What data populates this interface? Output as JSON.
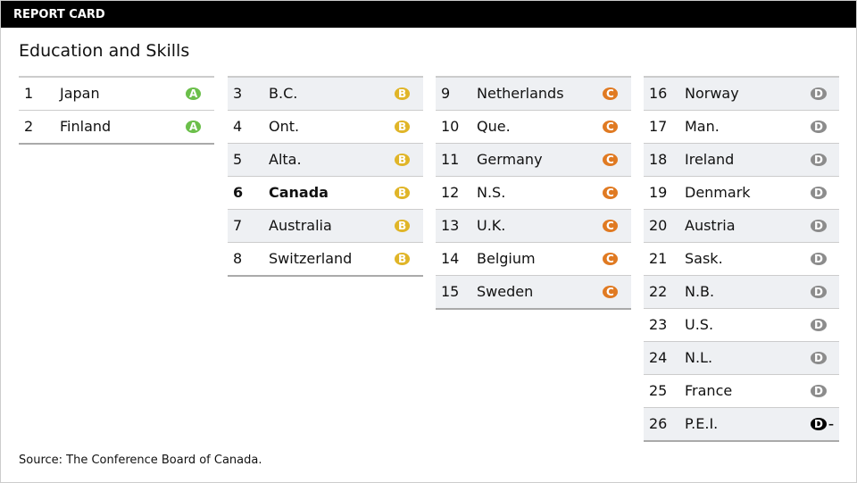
{
  "header": {
    "title": "REPORT CARD"
  },
  "subtitle": "Education and Skills",
  "columns": [
    [
      [
        "1",
        "Japan",
        "A"
      ],
      [
        "2",
        "Finland",
        "A"
      ]
    ],
    [
      [
        "3",
        "B.C.",
        "B"
      ],
      [
        "4",
        "Ont.",
        "B"
      ],
      [
        "5",
        "Alta.",
        "B"
      ],
      [
        "6",
        "Canada",
        "B"
      ],
      [
        "7",
        "Australia",
        "B"
      ],
      [
        "8",
        "Switzerland",
        "B"
      ]
    ],
    [
      [
        "9",
        "Netherlands",
        "C"
      ],
      [
        "10",
        "Que.",
        "C"
      ],
      [
        "11",
        "Germany",
        "C"
      ],
      [
        "12",
        "N.S.",
        "C"
      ],
      [
        "13",
        "U.K.",
        "C"
      ],
      [
        "14",
        "Belgium",
        "C"
      ],
      [
        "15",
        "Sweden",
        "C"
      ]
    ],
    [
      [
        "16",
        "Norway",
        "D"
      ],
      [
        "17",
        "Man.",
        "D"
      ],
      [
        "18",
        "Ireland",
        "D"
      ],
      [
        "19",
        "Denmark",
        "D"
      ],
      [
        "20",
        "Austria",
        "D"
      ],
      [
        "21",
        "Sask.",
        "D"
      ],
      [
        "22",
        "N.B.",
        "D"
      ],
      [
        "23",
        "U.S.",
        "D"
      ],
      [
        "24",
        "N.L.",
        "D"
      ],
      [
        "25",
        "France",
        "D"
      ],
      [
        "26",
        "P.E.I.",
        "D–"
      ]
    ]
  ],
  "source": "Source: The Conference Board of Canada."
}
